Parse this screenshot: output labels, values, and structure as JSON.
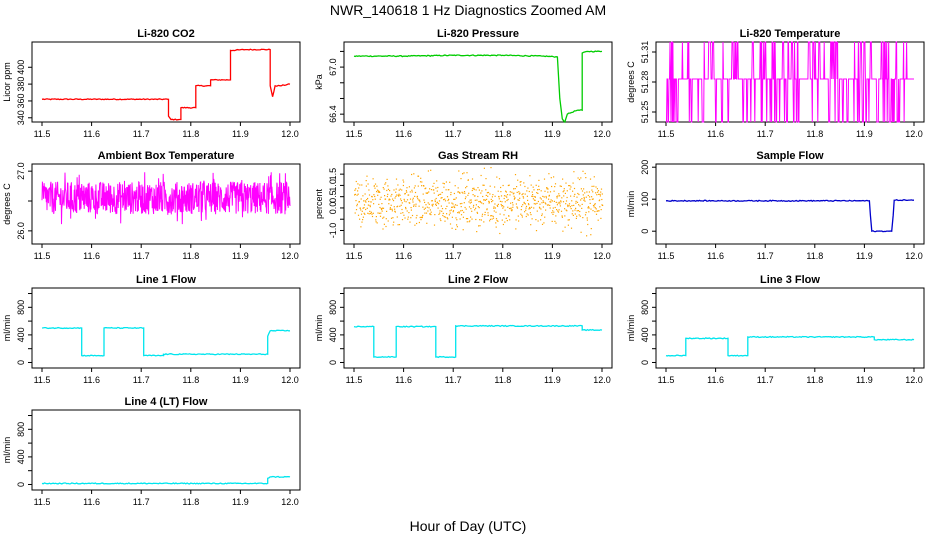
{
  "title": "NWR_140618  1 Hz Diagnostics Zoomed AM",
  "xlabel": "Hour of Day (UTC)",
  "chart_data": [
    {
      "type": "line",
      "title": "Li-820 CO2",
      "ylabel": "Licor ppm",
      "color": "#ff0000",
      "xlim": [
        11.5,
        12.0
      ],
      "xticks": [
        "11.5",
        "11.6",
        "11.7",
        "11.8",
        "11.9",
        "12.0"
      ],
      "ylim": [
        335,
        430
      ],
      "yticks": [
        340,
        360,
        380,
        400
      ],
      "series": [
        {
          "x": [
            11.5,
            11.755,
            11.755,
            11.76,
            11.78,
            11.78,
            11.81,
            11.81,
            11.84,
            11.84,
            11.865,
            11.88,
            11.88,
            11.91,
            11.96,
            11.96,
            11.965,
            11.97,
            11.98,
            12.0
          ],
          "values": [
            362,
            362,
            342,
            338,
            338,
            352,
            352,
            378,
            378,
            385,
            385,
            385,
            420,
            421,
            421,
            378,
            365,
            378,
            378,
            380
          ]
        }
      ]
    },
    {
      "type": "line",
      "title": "Li-820 Pressure",
      "ylabel": "kPa",
      "color": "#00cc00",
      "xlim": [
        11.5,
        12.0
      ],
      "xticks": [
        "11.5",
        "11.6",
        "11.7",
        "11.8",
        "11.9",
        "12.0"
      ],
      "ylim": [
        66.3,
        67.32
      ],
      "yticks": [
        66.4,
        66.6,
        66.8,
        67.0,
        67.2
      ],
      "ytick_labels": [
        "66.4",
        "",
        "",
        "67.0",
        ""
      ],
      "series": [
        {
          "x": [
            11.5,
            11.6,
            11.7,
            11.8,
            11.88,
            11.91,
            11.915,
            11.92,
            11.925,
            11.93,
            11.95,
            11.955,
            11.96,
            11.96,
            11.97,
            12.0
          ],
          "values": [
            67.14,
            67.14,
            67.15,
            67.15,
            67.14,
            67.13,
            66.6,
            66.34,
            66.3,
            66.4,
            66.45,
            66.45,
            66.45,
            67.18,
            67.2,
            67.2
          ]
        }
      ]
    },
    {
      "type": "line",
      "title": "Li-820 Temperature",
      "ylabel": "degrees C",
      "color": "#ff00ff",
      "xlim": [
        11.5,
        12.0
      ],
      "xticks": [
        "11.5",
        "11.6",
        "11.7",
        "11.8",
        "11.9",
        "12.0"
      ],
      "ylim": [
        51.24,
        51.32
      ],
      "yticks": [
        51.25,
        51.28,
        51.31
      ],
      "ytick_labels": [
        "51.25",
        "51.28",
        "51.31"
      ],
      "levels": [
        51.24,
        51.283,
        51.32
      ]
    },
    {
      "type": "line",
      "title": "Ambient Box Temperature",
      "ylabel": "degrees C",
      "color": "#ff00ff",
      "xlim": [
        11.5,
        12.0
      ],
      "xticks": [
        "11.5",
        "11.6",
        "11.7",
        "11.8",
        "11.9",
        "12.0"
      ],
      "ylim": [
        25.78,
        27.12
      ],
      "yticks": [
        26.0,
        26.5,
        27.0
      ],
      "ytick_labels": [
        "26.0",
        "",
        "27.0"
      ],
      "center": 26.55,
      "spread": 0.55
    },
    {
      "type": "scatter",
      "title": "Gas Stream RH",
      "ylabel": "percent",
      "color": "#ffa500",
      "xlim": [
        11.5,
        12.0
      ],
      "xticks": [
        "11.5",
        "11.6",
        "11.7",
        "11.8",
        "11.9",
        "12.0"
      ],
      "ylim": [
        -1.6,
        1.95
      ],
      "yticks": [
        -1.0,
        -0.5,
        0.0,
        0.5,
        1.0,
        1.5
      ],
      "ytick_labels": [
        "-1.0",
        "",
        "0.0",
        "0.5",
        "1.0",
        "1.5"
      ],
      "center": 0.3,
      "spread": 1.5
    },
    {
      "type": "line",
      "title": "Sample Flow",
      "ylabel": "ml/min",
      "color": "#0000cc",
      "xlim": [
        11.5,
        12.0
      ],
      "xticks": [
        "11.5",
        "11.6",
        "11.7",
        "11.8",
        "11.9",
        "12.0"
      ],
      "ylim": [
        -40,
        210
      ],
      "yticks": [
        0,
        100,
        200
      ],
      "series": [
        {
          "x": [
            11.5,
            11.91,
            11.912,
            11.915,
            11.95,
            11.955,
            11.958,
            11.96,
            12.0
          ],
          "values": [
            95,
            95,
            50,
            0,
            0,
            0,
            50,
            97,
            97
          ]
        }
      ]
    },
    {
      "type": "line",
      "title": "Line 1 Flow",
      "ylabel": "ml/min",
      "color": "#00e5ee",
      "xlim": [
        11.5,
        12.0
      ],
      "xticks": [
        "11.5",
        "11.6",
        "11.7",
        "11.8",
        "11.9",
        "12.0"
      ],
      "ylim": [
        -80,
        1080
      ],
      "yticks": [
        0,
        200,
        400,
        600,
        800,
        1000
      ],
      "ytick_labels": [
        "0",
        "",
        "400",
        "",
        "800",
        ""
      ],
      "series": [
        {
          "x": [
            11.5,
            11.58,
            11.58,
            11.625,
            11.625,
            11.705,
            11.705,
            11.745,
            11.745,
            11.955,
            11.955,
            11.96,
            12.0
          ],
          "values": [
            500,
            500,
            100,
            100,
            500,
            500,
            100,
            100,
            120,
            120,
            380,
            460,
            460
          ]
        }
      ]
    },
    {
      "type": "line",
      "title": "Line 2 Flow",
      "ylabel": "ml/min",
      "color": "#00e5ee",
      "xlim": [
        11.5,
        12.0
      ],
      "xticks": [
        "11.5",
        "11.6",
        "11.7",
        "11.8",
        "11.9",
        "12.0"
      ],
      "ylim": [
        -80,
        1080
      ],
      "yticks": [
        0,
        200,
        400,
        600,
        800,
        1000
      ],
      "ytick_labels": [
        "0",
        "",
        "400",
        "",
        "800",
        ""
      ],
      "series": [
        {
          "x": [
            11.5,
            11.54,
            11.54,
            11.585,
            11.585,
            11.665,
            11.665,
            11.705,
            11.705,
            11.96,
            11.96,
            12.0
          ],
          "values": [
            520,
            520,
            80,
            80,
            520,
            520,
            80,
            80,
            530,
            530,
            470,
            470
          ]
        }
      ]
    },
    {
      "type": "line",
      "title": "Line 3 Flow",
      "ylabel": "ml/min",
      "color": "#00e5ee",
      "xlim": [
        11.5,
        12.0
      ],
      "xticks": [
        "11.5",
        "11.6",
        "11.7",
        "11.8",
        "11.9",
        "12.0"
      ],
      "ylim": [
        -80,
        1080
      ],
      "yticks": [
        0,
        200,
        400,
        600,
        800,
        1000
      ],
      "ytick_labels": [
        "0",
        "",
        "400",
        "",
        "800",
        ""
      ],
      "series": [
        {
          "x": [
            11.5,
            11.54,
            11.54,
            11.625,
            11.625,
            11.665,
            11.665,
            11.92,
            11.92,
            12.0
          ],
          "values": [
            100,
            100,
            350,
            350,
            100,
            100,
            370,
            370,
            330,
            330
          ]
        }
      ]
    },
    {
      "type": "line",
      "title": "Line 4 (LT) Flow",
      "ylabel": "ml/min",
      "color": "#00e5ee",
      "xlim": [
        11.5,
        12.0
      ],
      "xticks": [
        "11.5",
        "11.6",
        "11.7",
        "11.8",
        "11.9",
        "12.0"
      ],
      "ylim": [
        -80,
        1080
      ],
      "yticks": [
        0,
        200,
        400,
        600,
        800,
        1000
      ],
      "ytick_labels": [
        "0",
        "",
        "400",
        "",
        "800",
        ""
      ],
      "series": [
        {
          "x": [
            11.5,
            11.955,
            11.955,
            11.96,
            12.0
          ],
          "values": [
            15,
            15,
            90,
            110,
            110
          ]
        }
      ]
    }
  ]
}
